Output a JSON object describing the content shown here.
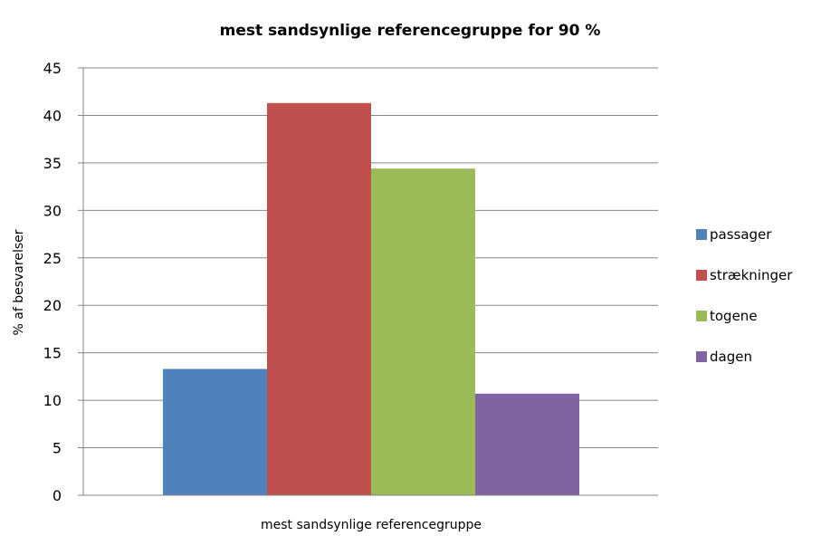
{
  "chart_data": {
    "type": "bar",
    "title": "mest sandsynlige referencegruppe for 90 %",
    "xlabel": "mest sandsynlige referencegruppe",
    "ylabel": "% af besvarelser",
    "ylim": [
      0,
      45
    ],
    "yticks": [
      "0",
      "5",
      "10",
      "15",
      "20",
      "25",
      "30",
      "35",
      "40",
      "45"
    ],
    "grid": true,
    "legend_position": "right",
    "series": [
      {
        "name": "passager",
        "values": [
          13.3
        ],
        "color": "#4F81BD"
      },
      {
        "name": "strækninger",
        "values": [
          41.3
        ],
        "color": "#C0504D"
      },
      {
        "name": "togene",
        "values": [
          34.4
        ],
        "color": "#9BBB59"
      },
      {
        "name": "dagen",
        "values": [
          10.7
        ],
        "color": "#8064A2"
      }
    ]
  }
}
